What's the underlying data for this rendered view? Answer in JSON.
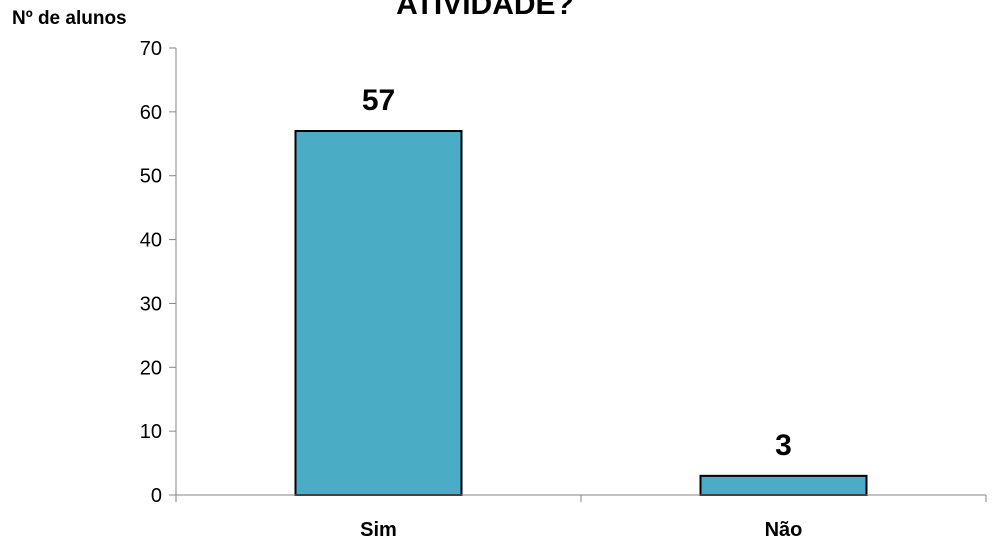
{
  "chart_data": {
    "type": "bar",
    "title": "ATIVIDADE?",
    "xlabel": "",
    "ylabel": "Nº de alunos",
    "categories": [
      "Sim",
      "Não"
    ],
    "values": [
      57,
      3
    ],
    "data_labels": [
      "57",
      "3"
    ],
    "ylim": [
      0,
      70
    ],
    "yticks": [
      0,
      10,
      20,
      30,
      40,
      50,
      60,
      70
    ],
    "ytick_labels": [
      "0",
      "10",
      "20",
      "30",
      "40",
      "50",
      "60",
      "70"
    ],
    "grid": false,
    "legend": "none",
    "bar_color": "#4bacc6",
    "bar_edge_color": "#000000"
  }
}
